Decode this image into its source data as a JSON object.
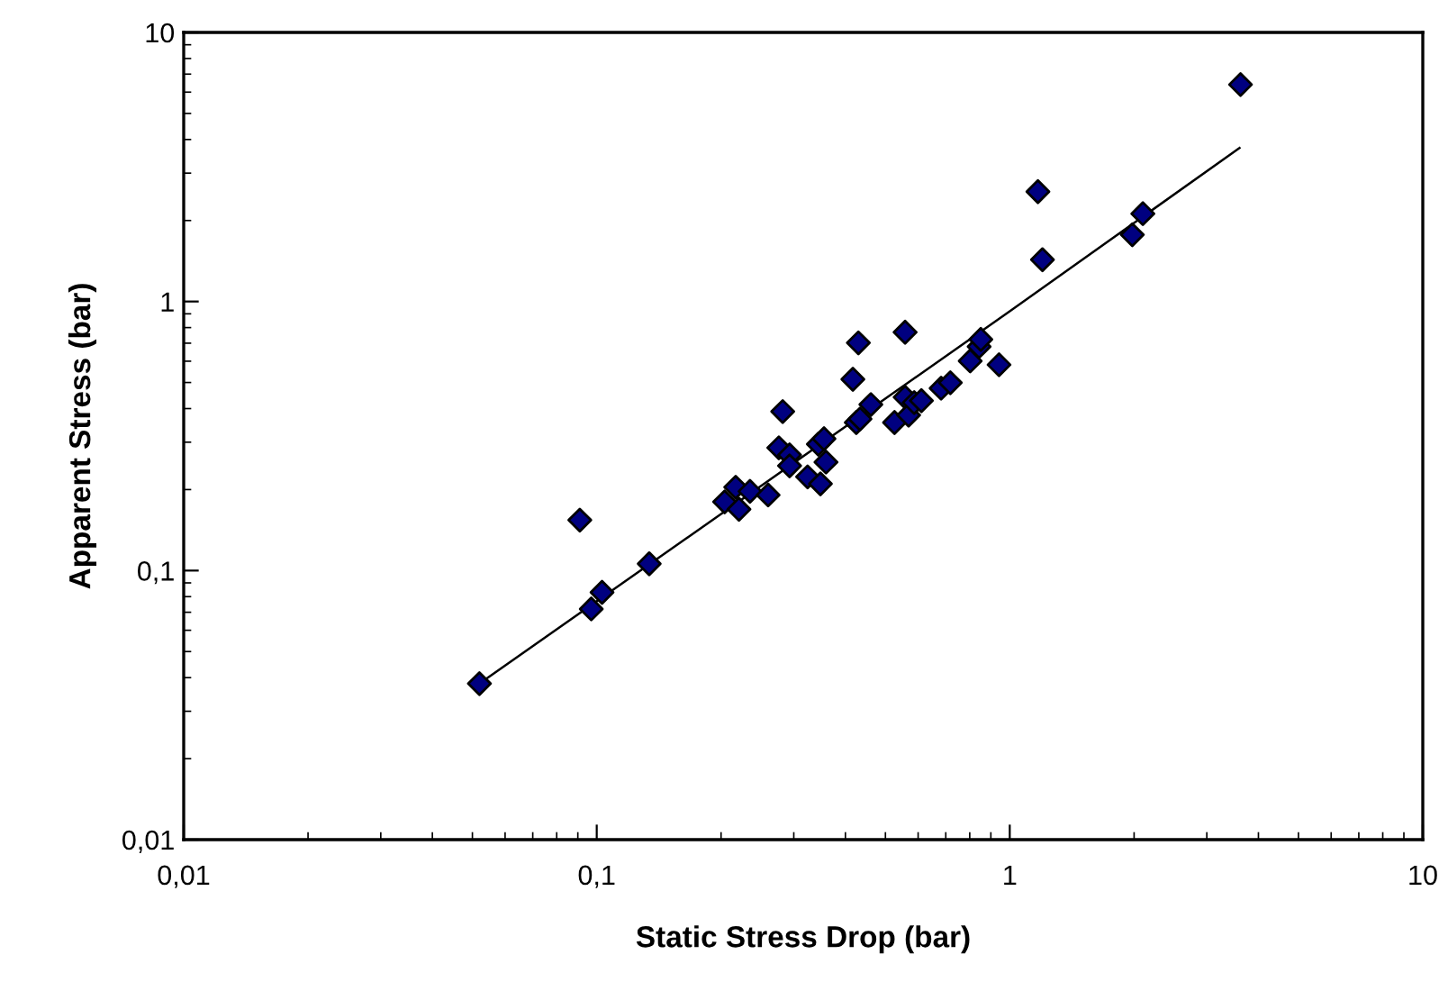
{
  "chart_data": {
    "type": "scatter",
    "xlabel": "Static Stress Drop (bar)",
    "ylabel": "Apparent Stress (bar)",
    "log": "xy",
    "grid": false,
    "marker": "diamond",
    "xlim": [
      0.01,
      10
    ],
    "ylim": [
      0.01,
      10
    ],
    "xticks": [
      {
        "value": 0.01,
        "label": "0,01"
      },
      {
        "value": 0.1,
        "label": "0,1"
      },
      {
        "value": 1,
        "label": "1"
      },
      {
        "value": 10,
        "label": "10"
      }
    ],
    "yticks": [
      {
        "value": 0.01,
        "label": "0,01"
      },
      {
        "value": 0.1,
        "label": "0,1"
      },
      {
        "value": 1,
        "label": "1"
      },
      {
        "value": 10,
        "label": "10"
      }
    ],
    "series": [
      {
        "color": "#000080",
        "x": [
          0.052,
          0.091,
          0.097,
          0.103,
          0.134,
          0.204,
          0.217,
          0.221,
          0.235,
          0.26,
          0.276,
          0.293,
          0.293,
          0.282,
          0.324,
          0.348,
          0.359,
          0.344,
          0.355,
          0.417,
          0.43,
          0.425,
          0.434,
          0.461,
          0.526,
          0.558,
          0.558,
          0.569,
          0.587,
          0.611,
          0.682,
          0.718,
          0.802,
          0.843,
          0.851,
          0.942,
          1.2,
          1.17,
          2.1,
          1.98,
          3.62
        ],
        "values": [
          0.038,
          0.154,
          0.072,
          0.083,
          0.106,
          0.18,
          0.204,
          0.169,
          0.197,
          0.191,
          0.286,
          0.269,
          0.245,
          0.39,
          0.223,
          0.21,
          0.253,
          0.295,
          0.309,
          0.514,
          0.702,
          0.355,
          0.366,
          0.414,
          0.355,
          0.769,
          0.441,
          0.378,
          0.421,
          0.428,
          0.476,
          0.499,
          0.601,
          0.68,
          0.723,
          0.582,
          1.43,
          2.56,
          2.12,
          1.77,
          6.4
        ]
      },
      {
        "type": "line",
        "color": "#000000",
        "marker": "none",
        "x": [
          0.052,
          1,
          3.6
        ],
        "values": [
          0.038,
          0.92,
          3.72
        ]
      }
    ]
  }
}
